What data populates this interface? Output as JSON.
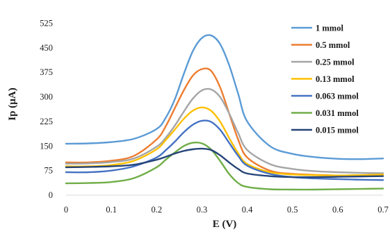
{
  "chart_data": {
    "type": "line",
    "xlabel": "E (V)",
    "ylabel": "Ip (µA)",
    "xlim": [
      0,
      0.7
    ],
    "ylim": [
      0,
      560
    ],
    "x_ticks": [
      "0",
      "0.1",
      "0.2",
      "0.3",
      "0.4",
      "0.5",
      "0.6",
      "0.7"
    ],
    "y_ticks": [
      "0",
      "75",
      "150",
      "225",
      "300",
      "375",
      "450",
      "525"
    ],
    "grid": false,
    "legend_position": "top-right",
    "x": [
      0,
      0.05,
      0.1,
      0.15,
      0.2,
      0.22,
      0.24,
      0.26,
      0.28,
      0.3,
      0.32,
      0.34,
      0.36,
      0.38,
      0.4,
      0.45,
      0.5,
      0.55,
      0.6,
      0.65,
      0.7
    ],
    "series": [
      {
        "name": "1 mmol",
        "color": "#5b9bd5",
        "values": [
          157,
          158,
          162,
          172,
          202,
          236,
          292,
          370,
          440,
          480,
          488,
          462,
          398,
          310,
          225,
          150,
          126,
          116,
          111,
          110,
          112
        ]
      },
      {
        "name": "0.5 mmol",
        "color": "#ed7d31",
        "values": [
          100,
          100,
          105,
          120,
          170,
          210,
          265,
          320,
          365,
          385,
          380,
          330,
          250,
          170,
          115,
          75,
          65,
          62,
          60,
          61,
          63
        ]
      },
      {
        "name": "0.25 mmol",
        "color": "#a5a5a5",
        "values": [
          96,
          97,
          101,
          112,
          148,
          175,
          212,
          255,
          295,
          320,
          323,
          300,
          250,
          190,
          138,
          95,
          80,
          73,
          70,
          68,
          67
        ]
      },
      {
        "name": "0.13 mmol",
        "color": "#ffc000",
        "values": [
          88,
          88,
          92,
          105,
          140,
          168,
          200,
          233,
          258,
          268,
          258,
          225,
          175,
          128,
          95,
          70,
          63,
          61,
          60,
          61,
          63
        ]
      },
      {
        "name": "0.063 mmol",
        "color": "#4472c4",
        "values": [
          70,
          70,
          75,
          88,
          115,
          137,
          163,
          192,
          215,
          227,
          224,
          200,
          160,
          120,
          90,
          65,
          55,
          51,
          49,
          47,
          46
        ]
      },
      {
        "name": "0.031 mmol",
        "color": "#70ad47",
        "values": [
          36,
          37,
          40,
          52,
          85,
          108,
          130,
          150,
          160,
          158,
          140,
          105,
          65,
          37,
          25,
          18,
          17,
          17,
          18,
          19,
          20
        ]
      },
      {
        "name": "0.015 mmol",
        "color": "#264478",
        "values": [
          85,
          86,
          88,
          93,
          108,
          117,
          127,
          135,
          140,
          142,
          138,
          122,
          100,
          80,
          66,
          58,
          55,
          55,
          56,
          57,
          58
        ]
      }
    ]
  }
}
